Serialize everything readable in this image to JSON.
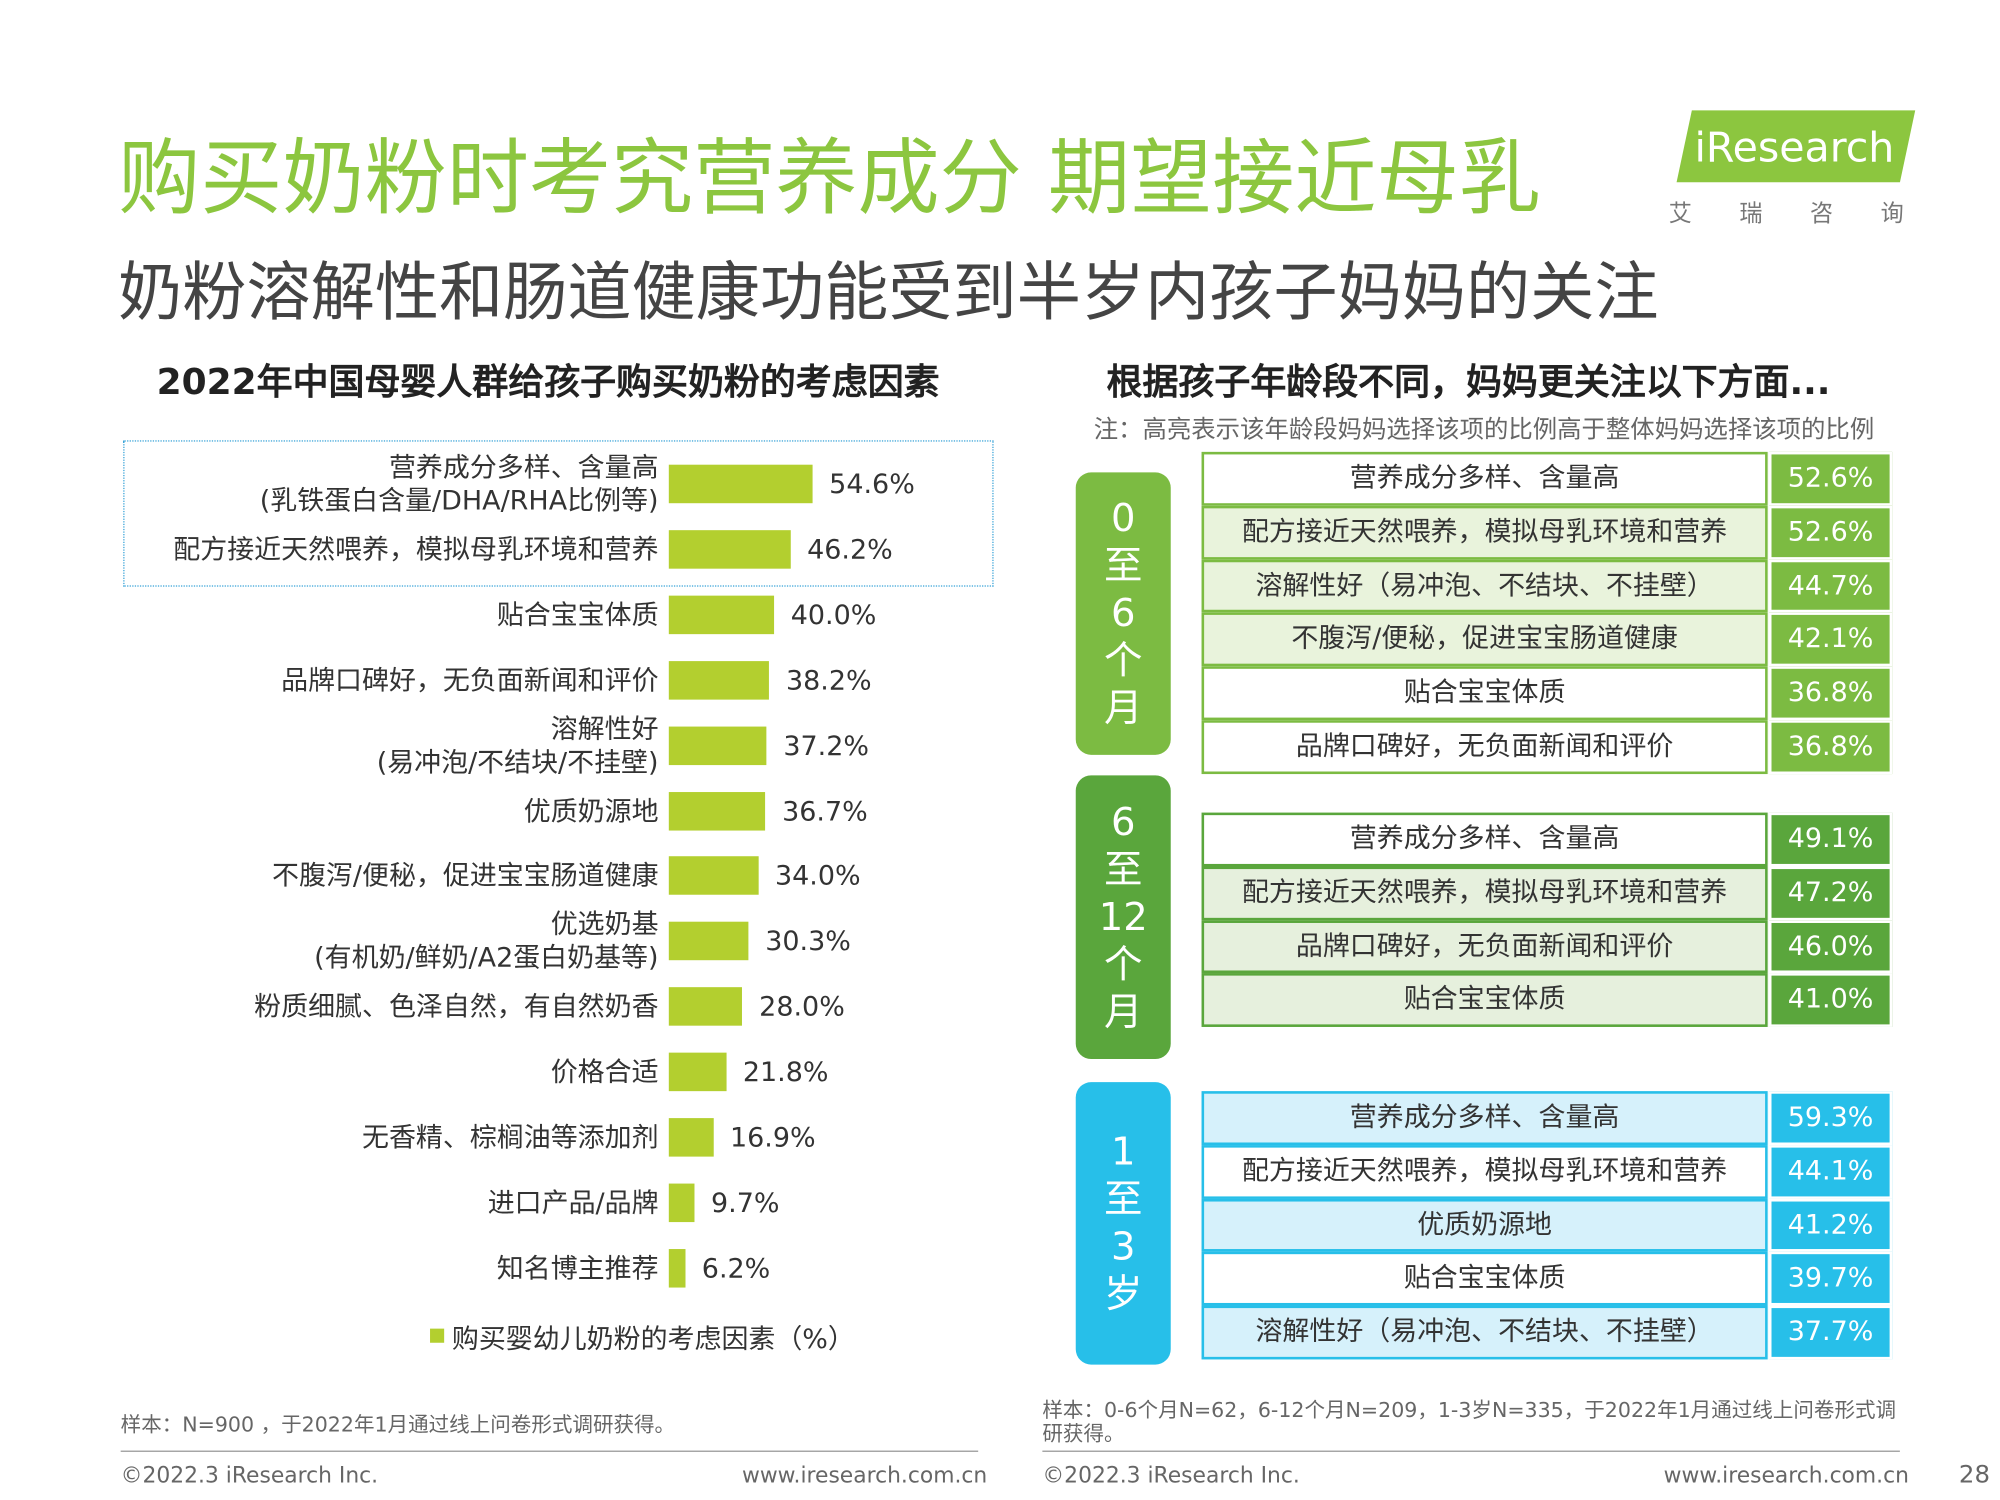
{
  "header": {
    "title": "购买奶粉时考究营养成分 期望接近母乳",
    "subtitle": "奶粉溶解性和肠道健康功能受到半岁内孩子妈妈的关注",
    "logo": "iResearch",
    "logo_sub": "艾瑞咨询"
  },
  "chart_data": {
    "type": "bar",
    "orientation": "horizontal",
    "title": "2022年中国母婴人群给孩子购买奶粉的考虑因素",
    "categories": [
      "营养成分多样、含量高\n(乳铁蛋白含量/DHA/RHA比例等)",
      "配方接近天然喂养，模拟母乳环境和营养",
      "贴合宝宝体质",
      "品牌口碑好，无负面新闻和评价",
      "溶解性好\n(易冲泡/不结块/不挂壁)",
      "优质奶源地",
      "不腹泻/便秘，促进宝宝肠道健康",
      "优选奶基\n(有机奶/鲜奶/A2蛋白奶基等)",
      "粉质细腻、色泽自然，有自然奶香",
      "价格合适",
      "无香精、棕榈油等添加剂",
      "进口产品/品牌",
      "知名博主推荐"
    ],
    "series": [
      {
        "name": "购买婴幼儿奶粉的考虑因素（%）",
        "color": "#b3cf2f",
        "values": [
          54.6,
          46.2,
          40.0,
          38.2,
          37.2,
          36.7,
          34.0,
          30.3,
          28.0,
          21.8,
          16.9,
          9.7,
          6.2
        ],
        "value_labels": [
          "54.6%",
          "46.2%",
          "40.0%",
          "38.2%",
          "37.2%",
          "36.7%",
          "34.0%",
          "30.3%",
          "28.0%",
          "21.8%",
          "16.9%",
          "9.7%",
          "6.2%"
        ]
      }
    ],
    "note": "样本：N=900 ，于2022年1月通过线上问卷形式调研获得。"
  },
  "right_panel": {
    "title": "根据孩子年龄段不同，妈妈更关注以下方面...",
    "note": "注：高亮表示该年龄段妈妈选择该项的比例高于整体妈妈选择该项的比例",
    "groups": [
      {
        "label": "0至6个月",
        "color": "#7cbb42",
        "light": "#e9f3dc",
        "rows": [
          {
            "item": "营养成分多样、含量高",
            "value": "52.6%",
            "highlight": false
          },
          {
            "item": "配方接近天然喂养，模拟母乳环境和营养",
            "value": "52.6%",
            "highlight": true
          },
          {
            "item": "溶解性好（易冲泡、不结块、不挂壁）",
            "value": "44.7%",
            "highlight": true
          },
          {
            "item": "不腹泻/便秘，促进宝宝肠道健康",
            "value": "42.1%",
            "highlight": true
          },
          {
            "item": "贴合宝宝体质",
            "value": "36.8%",
            "highlight": false
          },
          {
            "item": "品牌口碑好，无负面新闻和评价",
            "value": "36.8%",
            "highlight": false
          }
        ]
      },
      {
        "label": "6至12个月",
        "color": "#5aa63c",
        "light": "#e6f0dd",
        "rows": [
          {
            "item": "营养成分多样、含量高",
            "value": "49.1%",
            "highlight": false
          },
          {
            "item": "配方接近天然喂养，模拟母乳环境和营养",
            "value": "47.2%",
            "highlight": true
          },
          {
            "item": "品牌口碑好，无负面新闻和评价",
            "value": "46.0%",
            "highlight": true
          },
          {
            "item": "贴合宝宝体质",
            "value": "41.0%",
            "highlight": true
          }
        ]
      },
      {
        "label": "1至3岁",
        "color": "#27bfe9",
        "light": "#d6f1fb",
        "rows": [
          {
            "item": "营养成分多样、含量高",
            "value": "59.3%",
            "highlight": true
          },
          {
            "item": "配方接近天然喂养，模拟母乳环境和营养",
            "value": "44.1%",
            "highlight": false
          },
          {
            "item": "优质奶源地",
            "value": "41.2%",
            "highlight": true
          },
          {
            "item": "贴合宝宝体质",
            "value": "39.7%",
            "highlight": false
          },
          {
            "item": "溶解性好（易冲泡、不结块、不挂壁）",
            "value": "37.7%",
            "highlight": true
          }
        ]
      }
    ],
    "sample": "样本：0-6个月N=62，6-12个月N=209，1-3岁N=335，于2022年1月通过线上问卷形式调研获得。"
  },
  "footer": {
    "copyright": "©2022.3 iResearch Inc.",
    "url": "www.iresearch.com.cn",
    "page": "28"
  }
}
